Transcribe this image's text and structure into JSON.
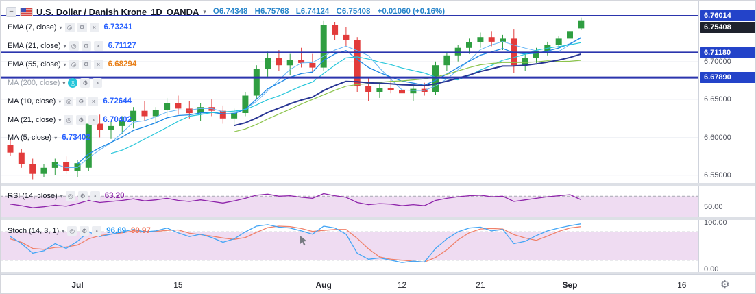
{
  "icons": {
    "collapse": "–",
    "chevron": "▾",
    "eye": "◎",
    "settings": "⚙",
    "close": "×",
    "gear": "⚙"
  },
  "titlebar": {
    "symbol": "U.S. Dollar / Danish Krone",
    "interval": "1D",
    "exchange": "OANDA",
    "up_color": "#2986cb",
    "ohlc": {
      "o": "O6.74348",
      "h": "H6.75768",
      "l": "L6.74124",
      "c": "C6.75408",
      "change": "+0.01060 (+0.16%)"
    }
  },
  "legend": {
    "rows": [
      {
        "id": "ema-7",
        "label": "EMA (7, close)",
        "show_buttons": true,
        "muted": false,
        "eye_active": false,
        "values": [
          {
            "text": "6.73241",
            "color": "#2962ff"
          }
        ]
      },
      {
        "id": "ema-21",
        "label": "EMA (21, close)",
        "show_buttons": true,
        "muted": false,
        "eye_active": false,
        "values": [
          {
            "text": "6.71127",
            "color": "#2962ff"
          }
        ]
      },
      {
        "id": "ema-55",
        "label": "EMA (55, close)",
        "show_buttons": true,
        "muted": false,
        "eye_active": false,
        "values": [
          {
            "text": "6.68294",
            "color": "#e8801a"
          }
        ]
      },
      {
        "id": "ma-200",
        "label": "MA (200, close)",
        "show_buttons": true,
        "muted": true,
        "eye_active": true,
        "values": []
      },
      {
        "id": "ma-10",
        "label": "MA (10, close)",
        "show_buttons": true,
        "muted": false,
        "eye_active": false,
        "values": [
          {
            "text": "6.72644",
            "color": "#2962ff"
          }
        ]
      },
      {
        "id": "ma-21",
        "label": "MA (21, close)",
        "show_buttons": true,
        "muted": false,
        "eye_active": false,
        "values": [
          {
            "text": "6.70402",
            "color": "#2962ff"
          }
        ]
      },
      {
        "id": "ma-5",
        "label": "MA (5, close)",
        "show_buttons": false,
        "muted": false,
        "eye_active": false,
        "values": [
          {
            "text": "6.73402",
            "color": "#2962ff"
          }
        ]
      },
      {
        "id": "rsi",
        "label": "RSI (14, close)",
        "show_buttons": true,
        "muted": false,
        "eye_active": false,
        "values": [
          {
            "text": "63.20",
            "color": "#8e24aa"
          }
        ]
      },
      {
        "id": "stoch",
        "label": "Stoch (14, 3, 1)",
        "show_buttons": true,
        "muted": false,
        "eye_active": false,
        "values": [
          {
            "text": "96.69",
            "color": "#2196f3"
          },
          {
            "text": "90.97",
            "color": "#f0735a"
          }
        ]
      }
    ]
  },
  "price_scale": {
    "badges": [
      {
        "text": "6.76014",
        "price": 6.76014,
        "bg": "#2343c9"
      },
      {
        "text": "6.75408",
        "price": 6.75408,
        "bg": "#1e222d"
      },
      {
        "text": "6.71180",
        "price": 6.7118,
        "bg": "#2343c9"
      },
      {
        "text": "6.67890",
        "price": 6.6789,
        "bg": "#2343c9"
      }
    ],
    "labels": [
      {
        "text": "6.70000",
        "price": 6.7
      },
      {
        "text": "6.65000",
        "price": 6.65
      },
      {
        "text": "6.60000",
        "price": 6.6
      },
      {
        "text": "6.55000",
        "price": 6.55
      }
    ],
    "rsi_labels": [
      {
        "text": "50.00",
        "value": 50
      }
    ],
    "stoch_labels": [
      {
        "text": "100.00",
        "value": 100
      },
      {
        "text": "0.00",
        "value": 0
      }
    ]
  },
  "time_axis": {
    "ticks": [
      {
        "label": "Jul",
        "index": 6,
        "major": true
      },
      {
        "label": "15",
        "index": 15,
        "major": false
      },
      {
        "label": "Aug",
        "index": 28,
        "major": true
      },
      {
        "label": "12",
        "index": 35,
        "major": false
      },
      {
        "label": "21",
        "index": 42,
        "major": false
      },
      {
        "label": "Sep",
        "index": 50,
        "major": true
      },
      {
        "label": "16",
        "index": 60,
        "major": false
      }
    ]
  },
  "chart_data": {
    "type": "candlestick",
    "title": "U.S. Dollar / Danish Krone 1D OANDA",
    "last": {
      "open": 6.74348,
      "high": 6.75768,
      "low": 6.74124,
      "close": 6.75408,
      "change": 0.0106,
      "change_pct": 0.16
    },
    "up_color": "#2f9e41",
    "down_color": "#e23b3b",
    "price_range": [
      6.54,
      6.78
    ],
    "candles": [
      [
        6.59,
        6.598,
        6.576,
        6.58
      ],
      [
        6.58,
        6.585,
        6.56,
        6.565
      ],
      [
        6.565,
        6.572,
        6.545,
        6.552
      ],
      [
        6.552,
        6.565,
        6.548,
        6.56
      ],
      [
        6.56,
        6.572,
        6.55,
        6.568
      ],
      [
        6.568,
        6.575,
        6.552,
        6.556
      ],
      [
        6.556,
        6.57,
        6.548,
        6.566
      ],
      [
        6.56,
        6.625,
        6.556,
        6.618
      ],
      [
        6.618,
        6.63,
        6.6,
        6.61
      ],
      [
        6.61,
        6.622,
        6.598,
        6.615
      ],
      [
        6.615,
        6.628,
        6.605,
        6.622
      ],
      [
        6.622,
        6.64,
        6.612,
        6.635
      ],
      [
        6.635,
        6.648,
        6.622,
        6.628
      ],
      [
        6.628,
        6.64,
        6.618,
        6.636
      ],
      [
        6.636,
        6.652,
        6.628,
        6.645
      ],
      [
        6.645,
        6.655,
        6.63,
        6.638
      ],
      [
        6.638,
        6.648,
        6.625,
        6.632
      ],
      [
        6.632,
        6.645,
        6.622,
        6.64
      ],
      [
        6.64,
        6.65,
        6.628,
        6.635
      ],
      [
        6.635,
        6.642,
        6.618,
        6.625
      ],
      [
        6.625,
        6.638,
        6.615,
        6.632
      ],
      [
        6.632,
        6.66,
        6.628,
        6.655
      ],
      [
        6.655,
        6.695,
        6.65,
        6.69
      ],
      [
        6.69,
        6.713,
        6.68,
        6.705
      ],
      [
        6.705,
        6.715,
        6.688,
        6.695
      ],
      [
        6.695,
        6.71,
        6.682,
        6.702
      ],
      [
        6.702,
        6.718,
        6.692,
        6.698
      ],
      [
        6.698,
        6.71,
        6.685,
        6.692
      ],
      [
        6.692,
        6.754,
        6.688,
        6.748
      ],
      [
        6.748,
        6.752,
        6.728,
        6.735
      ],
      [
        6.735,
        6.745,
        6.72,
        6.728
      ],
      [
        6.728,
        6.732,
        6.66,
        6.668
      ],
      [
        6.668,
        6.678,
        6.648,
        6.66
      ],
      [
        6.66,
        6.672,
        6.652,
        6.665
      ],
      [
        6.665,
        6.68,
        6.658,
        6.662
      ],
      [
        6.662,
        6.67,
        6.65,
        6.658
      ],
      [
        6.658,
        6.668,
        6.648,
        6.664
      ],
      [
        6.664,
        6.672,
        6.655,
        6.66
      ],
      [
        6.66,
        6.7,
        6.656,
        6.695
      ],
      [
        6.695,
        6.712,
        6.688,
        6.708
      ],
      [
        6.708,
        6.722,
        6.7,
        6.718
      ],
      [
        6.718,
        6.73,
        6.71,
        6.725
      ],
      [
        6.725,
        6.738,
        6.718,
        6.732
      ],
      [
        6.732,
        6.74,
        6.72,
        6.726
      ],
      [
        6.726,
        6.735,
        6.715,
        6.73
      ],
      [
        6.73,
        6.742,
        6.685,
        6.695
      ],
      [
        6.695,
        6.71,
        6.688,
        6.705
      ],
      [
        6.705,
        6.718,
        6.698,
        6.714
      ],
      [
        6.714,
        6.726,
        6.708,
        6.722
      ],
      [
        6.722,
        6.734,
        6.716,
        6.73
      ],
      [
        6.73,
        6.745,
        6.724,
        6.74
      ],
      [
        6.74348,
        6.75768,
        6.74124,
        6.75408
      ]
    ],
    "overlays": [
      {
        "type": "sma",
        "period": 5,
        "color": "#64b5f6",
        "width": 1,
        "hidden": false
      },
      {
        "type": "ema",
        "period": 7,
        "color": "#1e88e5",
        "width": 1.3,
        "hidden": false
      },
      {
        "type": "sma",
        "period": 10,
        "color": "#26c6da",
        "width": 1.2,
        "hidden": false
      },
      {
        "type": "sma",
        "period": 21,
        "color": "#8bc34a",
        "width": 1.2,
        "hidden": false
      },
      {
        "type": "ema",
        "period": 21,
        "color": "#283593",
        "width": 2,
        "hidden": false
      },
      {
        "type": "ema",
        "period": 55,
        "color": "#f57c00",
        "width": 2.4,
        "hidden": false
      },
      {
        "type": "sma",
        "period": 200,
        "color": "#9598a1",
        "width": 1,
        "hidden": true
      }
    ],
    "hlines": [
      {
        "price": 6.76014,
        "color": "#2b35ad",
        "width": 2
      },
      {
        "price": 6.7118,
        "color": "#2b35ad",
        "width": 2.5
      },
      {
        "price": 6.6789,
        "color": "#2b35ad",
        "width": 3
      }
    ],
    "rsi": {
      "title": "RSI (14, close)",
      "last": 63.2,
      "color": "#8e24aa",
      "band": [
        30,
        70
      ],
      "band_fill": "#9c27b0",
      "scale": [
        30,
        90
      ],
      "values": [
        55,
        52,
        48,
        50,
        53,
        51,
        56,
        62,
        58,
        60,
        62,
        65,
        61,
        63,
        66,
        62,
        60,
        63,
        60,
        57,
        61,
        66,
        72,
        74,
        70,
        71,
        68,
        66,
        75,
        71,
        68,
        58,
        54,
        56,
        55,
        52,
        54,
        52,
        62,
        66,
        69,
        71,
        72,
        69,
        70,
        60,
        63,
        66,
        69,
        71,
        73,
        63.2
      ]
    },
    "stoch": {
      "title": "Stoch (14, 3, 1)",
      "k_last": 96.69,
      "d_last": 90.97,
      "k_color": "#42a5f5",
      "d_color": "#f0816a",
      "band": [
        20,
        80
      ],
      "band_fill": "#9c27b0",
      "scale": [
        0,
        100
      ],
      "k": [
        70,
        55,
        35,
        40,
        55,
        45,
        60,
        80,
        70,
        75,
        80,
        85,
        80,
        82,
        88,
        78,
        70,
        75,
        68,
        58,
        65,
        80,
        92,
        95,
        90,
        88,
        82,
        75,
        92,
        88,
        75,
        35,
        22,
        25,
        20,
        15,
        18,
        16,
        45,
        65,
        80,
        88,
        90,
        82,
        85,
        55,
        60,
        72,
        82,
        88,
        93,
        96.69
      ],
      "d": [
        65,
        58,
        45,
        43,
        47,
        48,
        52,
        65,
        72,
        75,
        78,
        82,
        81,
        81,
        83,
        84,
        77,
        74,
        71,
        67,
        64,
        68,
        79,
        89,
        92,
        91,
        87,
        81,
        83,
        85,
        85,
        66,
        44,
        27,
        22,
        20,
        18,
        16,
        26,
        42,
        63,
        78,
        86,
        87,
        86,
        74,
        67,
        62,
        71,
        81,
        88,
        90.97
      ]
    }
  }
}
